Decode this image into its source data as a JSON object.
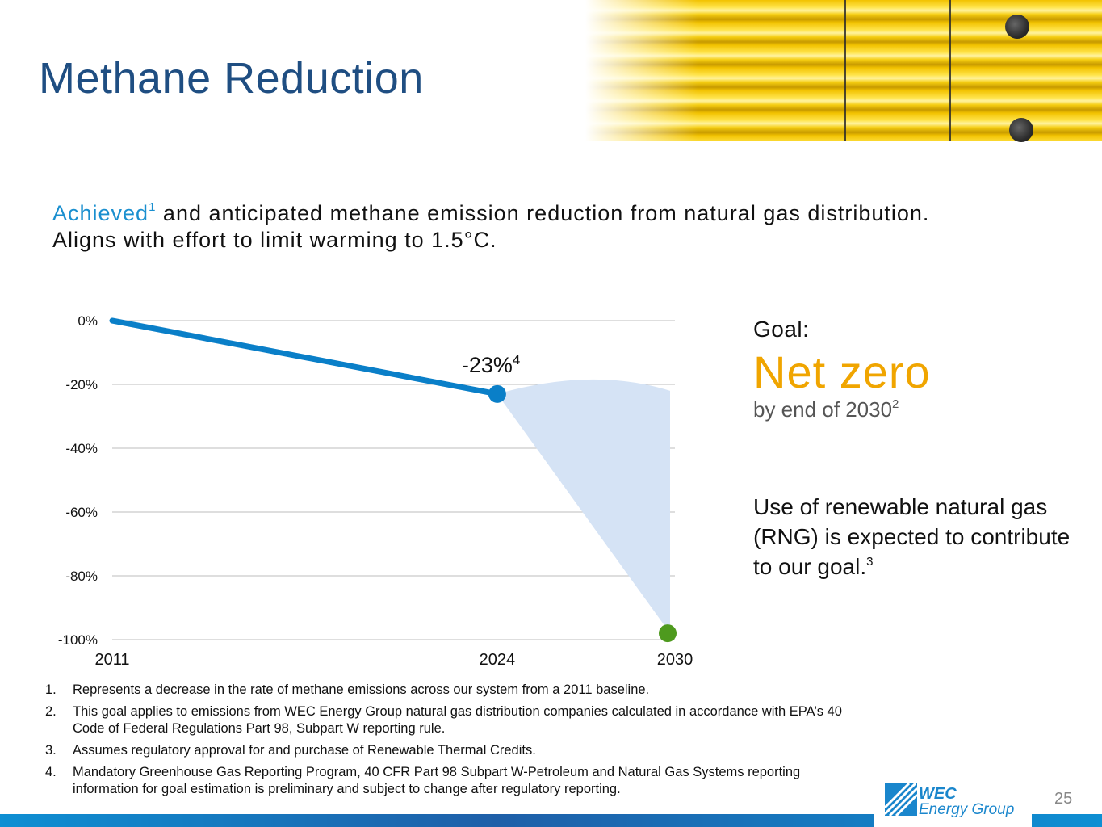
{
  "slide": {
    "title": "Methane Reduction",
    "subtitle_accent": "Achieved",
    "subtitle_accent_sup": "1",
    "subtitle_rest_1": " and anticipated methane emission reduction from natural gas distribution.",
    "subtitle_line2": "Aligns with effort to limit warming to 1.5°C.",
    "page_number": "25"
  },
  "goal": {
    "label": "Goal:",
    "value": "Net zero",
    "by_text": "by end of 2030",
    "by_sup": "2",
    "rng_text": "Use of renewable natural gas (RNG) is expected to contribute to our goal.",
    "rng_sup": "3"
  },
  "footnotes": [
    {
      "num": "1.",
      "text": "Represents a decrease in the rate of methane emissions across our system from a 2011 baseline."
    },
    {
      "num": "2.",
      "text": "This goal applies to emissions from WEC Energy Group natural gas distribution companies calculated in accordance with EPA’s 40 Code of Federal Regulations Part 98, Subpart W reporting rule."
    },
    {
      "num": "3.",
      "text": "Assumes regulatory approval for and purchase of Renewable Thermal Credits."
    },
    {
      "num": "4.",
      "text": "Mandatory Greenhouse Gas Reporting Program, 40 CFR Part 98 Subpart W-Petroleum and Natural Gas Systems reporting information for goal estimation is preliminary and subject to change after regulatory reporting."
    }
  ],
  "logo": {
    "line1": "WEC",
    "line2": "Energy Group"
  },
  "colors": {
    "title": "#1f4e82",
    "accent": "#1a8fcf",
    "goal": "#f0a500",
    "line": "#0a7fc8",
    "band": "#d5e3f5",
    "target_point": "#4e9a1e"
  },
  "chart_data": {
    "type": "line",
    "x": [
      2011,
      2024
    ],
    "series": [
      {
        "values": [
          0,
          -23
        ]
      }
    ],
    "target": {
      "x": 2030,
      "y": -98
    },
    "projection_band": {
      "from": {
        "x": 2024,
        "y": -23
      },
      "to_x": 2030,
      "upper": -22,
      "lower": -98
    },
    "x_ticks": [
      "2011",
      "2024",
      "2030"
    ],
    "y_ticks": [
      "0%",
      "-20%",
      "-40%",
      "-60%",
      "-80%",
      "-100%"
    ],
    "ylim": [
      -100,
      0
    ],
    "xlim": [
      2011,
      2030
    ],
    "annotation": {
      "text": "-23%",
      "sup": "4",
      "x": 2024,
      "y": -23
    },
    "grid": true
  }
}
